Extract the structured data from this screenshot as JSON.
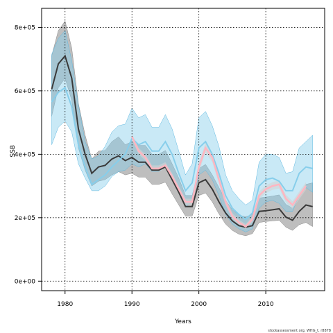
{
  "chart_data": {
    "type": "line",
    "xlabel": "Years",
    "ylabel": "SSB",
    "xlim": [
      1976.5,
      2018.8
    ],
    "ylim": [
      -30000,
      860000
    ],
    "xticks": [
      1980,
      1990,
      2000,
      2010
    ],
    "yticks": [
      0,
      200000,
      400000,
      600000,
      800000
    ],
    "ytick_labels": [
      "0e+00",
      "2e+05",
      "4e+05",
      "6e+05",
      "8e+05"
    ],
    "grid": true,
    "footer": "stockassessment.org, WHG_t, r8878",
    "colors": {
      "dark_band": "#b3b3b3",
      "dark_line": "#3a3a3a",
      "blue_band": "#87ceeb",
      "blue_line": "#87ceeb",
      "pink_band": "#d3d3d3",
      "pink_line": "#ffb6c1"
    },
    "series": [
      {
        "years": [
          1978,
          1979,
          1980,
          1981,
          1982,
          1983,
          1984,
          1985,
          1986,
          1987,
          1988,
          1989,
          1990,
          1991,
          1992,
          1993,
          1994,
          1995,
          1996,
          1997,
          1998,
          1999,
          2000,
          2001,
          2002,
          2003,
          2004,
          2005,
          2006,
          2007,
          2008,
          2009,
          2010,
          2011,
          2012,
          2013,
          2014,
          2015,
          2016,
          2017
        ],
        "values": [
          605000,
          685000,
          710000,
          640000,
          480000,
          400000,
          340000,
          360000,
          365000,
          385000,
          395000,
          380000,
          390000,
          375000,
          375000,
          350000,
          350000,
          360000,
          320000,
          280000,
          235000,
          235000,
          310000,
          320000,
          290000,
          250000,
          215000,
          190000,
          175000,
          170000,
          175000,
          220000,
          222000,
          225000,
          228000,
          202000,
          192000,
          220000,
          240000,
          235000
        ],
        "lower": [
          520000,
          610000,
          640000,
          570000,
          420000,
          350000,
          300000,
          315000,
          320000,
          335000,
          345000,
          335000,
          340000,
          328000,
          328000,
          305000,
          305000,
          312000,
          275000,
          240000,
          205000,
          205000,
          270000,
          278000,
          250000,
          212000,
          180000,
          160000,
          148000,
          143000,
          150000,
          185000,
          188000,
          190000,
          192000,
          170000,
          160000,
          178000,
          185000,
          172000
        ],
        "upper": [
          710000,
          790000,
          820000,
          735000,
          560000,
          460000,
          385000,
          410000,
          412000,
          440000,
          455000,
          430000,
          440000,
          428000,
          428000,
          400000,
          400000,
          412000,
          370000,
          325000,
          270000,
          270000,
          355000,
          368000,
          335000,
          295000,
          255000,
          225000,
          208000,
          203000,
          210000,
          262000,
          265000,
          268000,
          272000,
          242000,
          230000,
          268000,
          305000,
          310000
        ]
      },
      {
        "years": [
          1978,
          1979,
          1980,
          1981,
          1982,
          1983,
          1984,
          1985,
          1986,
          1987,
          1988,
          1989,
          1990,
          1991,
          1992,
          1993,
          1994,
          1995,
          1996,
          1997,
          1998,
          1999,
          2000,
          2001,
          2002,
          2003,
          2004,
          2005,
          2006,
          2007,
          2008,
          2009,
          2010,
          2011,
          2012,
          2013,
          2014,
          2015,
          2016,
          2017
        ],
        "values": [
          565000,
          595000,
          610000,
          550000,
          430000,
          360000,
          305000,
          320000,
          335000,
          360000,
          380000,
          400000,
          450000,
          430000,
          440000,
          410000,
          410000,
          440000,
          400000,
          340000,
          285000,
          310000,
          420000,
          440000,
          400000,
          340000,
          270000,
          230000,
          210000,
          195000,
          215000,
          300000,
          320000,
          325000,
          315000,
          285000,
          285000,
          340000,
          360000,
          355000
        ],
        "lower": [
          430000,
          485000,
          505000,
          470000,
          370000,
          325000,
          285000,
          285000,
          300000,
          330000,
          345000,
          350000,
          370000,
          360000,
          370000,
          345000,
          345000,
          360000,
          335000,
          280000,
          235000,
          250000,
          335000,
          350000,
          320000,
          270000,
          210000,
          180000,
          165000,
          155000,
          165000,
          230000,
          250000,
          255000,
          245000,
          220000,
          220000,
          270000,
          295000,
          280000
        ],
        "upper": [
          715000,
          765000,
          790000,
          695000,
          555000,
          440000,
          385000,
          395000,
          425000,
          470000,
          490000,
          495000,
          545000,
          515000,
          525000,
          485000,
          485000,
          525000,
          480000,
          410000,
          335000,
          370000,
          515000,
          535000,
          490000,
          425000,
          335000,
          285000,
          260000,
          240000,
          255000,
          375000,
          400000,
          400000,
          390000,
          340000,
          345000,
          420000,
          440000,
          460000
        ]
      },
      {
        "years": [
          1990,
          1991,
          1992,
          1993,
          1994,
          1995,
          1996,
          1997,
          1998,
          1999,
          2000,
          2001,
          2002,
          2003,
          2004,
          2005,
          2006,
          2007,
          2008,
          2009,
          2010,
          2011,
          2012,
          2013,
          2014,
          2015,
          2016
        ],
        "values": [
          455000,
          410000,
          390000,
          355000,
          355000,
          365000,
          330000,
          290000,
          250000,
          250000,
          360000,
          420000,
          390000,
          320000,
          250000,
          205000,
          185000,
          172000,
          195000,
          270000,
          290000,
          300000,
          305000,
          260000,
          240000,
          270000,
          300000
        ],
        "lower": [
          445000,
          400000,
          380000,
          345000,
          345000,
          355000,
          320000,
          280000,
          240000,
          240000,
          345000,
          405000,
          375000,
          308000,
          240000,
          195000,
          176000,
          164000,
          186000,
          258000,
          278000,
          288000,
          292000,
          248000,
          228000,
          258000,
          288000
        ],
        "upper": [
          465000,
          420000,
          400000,
          365000,
          365000,
          375000,
          340000,
          300000,
          260000,
          260000,
          375000,
          435000,
          405000,
          332000,
          260000,
          215000,
          194000,
          180000,
          204000,
          282000,
          302000,
          312000,
          318000,
          272000,
          252000,
          282000,
          312000
        ]
      }
    ]
  }
}
